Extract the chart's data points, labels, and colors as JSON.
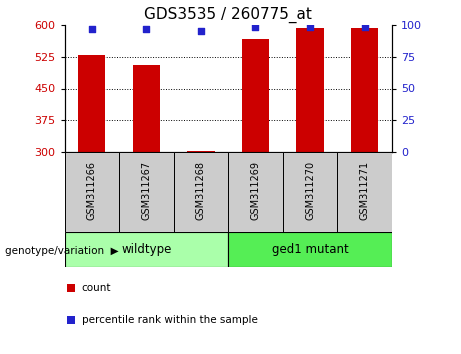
{
  "title": "GDS3535 / 260775_at",
  "samples": [
    "GSM311266",
    "GSM311267",
    "GSM311268",
    "GSM311269",
    "GSM311270",
    "GSM311271"
  ],
  "bar_values": [
    530,
    505,
    303,
    567,
    592,
    592
  ],
  "bar_base": 300,
  "percentile_values": [
    97,
    97,
    95,
    98,
    98,
    98
  ],
  "ylim_left": [
    300,
    600
  ],
  "ylim_right": [
    0,
    100
  ],
  "yticks_left": [
    300,
    375,
    450,
    525,
    600
  ],
  "yticks_right": [
    0,
    25,
    50,
    75,
    100
  ],
  "bar_color": "#cc0000",
  "dot_color": "#2222cc",
  "grid_color": "#000000",
  "group_label": "genotype/variation",
  "wildtype_color": "#aaffaa",
  "mutant_color": "#55ee55",
  "legend_items": [
    {
      "label": "count",
      "color": "#cc0000"
    },
    {
      "label": "percentile rank within the sample",
      "color": "#2222cc"
    }
  ],
  "left_tick_color": "#cc0000",
  "right_tick_color": "#2222cc",
  "bar_width": 0.5,
  "title_fontsize": 11,
  "tick_fontsize": 8,
  "xtick_fontsize": 7
}
